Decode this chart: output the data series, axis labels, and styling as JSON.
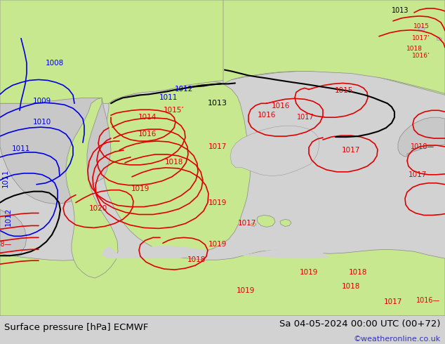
{
  "title_left": "Surface pressure [hPa] ECMWF",
  "title_right": "Sa 04-05-2024 00:00 UTC (00+72)",
  "watermark": "©weatheronline.co.uk",
  "bg_color": "#d2d2d2",
  "land_color": "#c8e890",
  "sea_color": "#d2d2d2",
  "bottom_bar_color": "#e0e0e0",
  "bottom_bar_height": 0.082,
  "title_fontsize": 9.5,
  "watermark_color": "#3333bb",
  "text_color": "#000000",
  "figsize": [
    6.34,
    4.9
  ],
  "dpi": 100,
  "blue": "#0000dd",
  "red": "#dd0000",
  "black": "#000000",
  "gray_outline": "#888888"
}
